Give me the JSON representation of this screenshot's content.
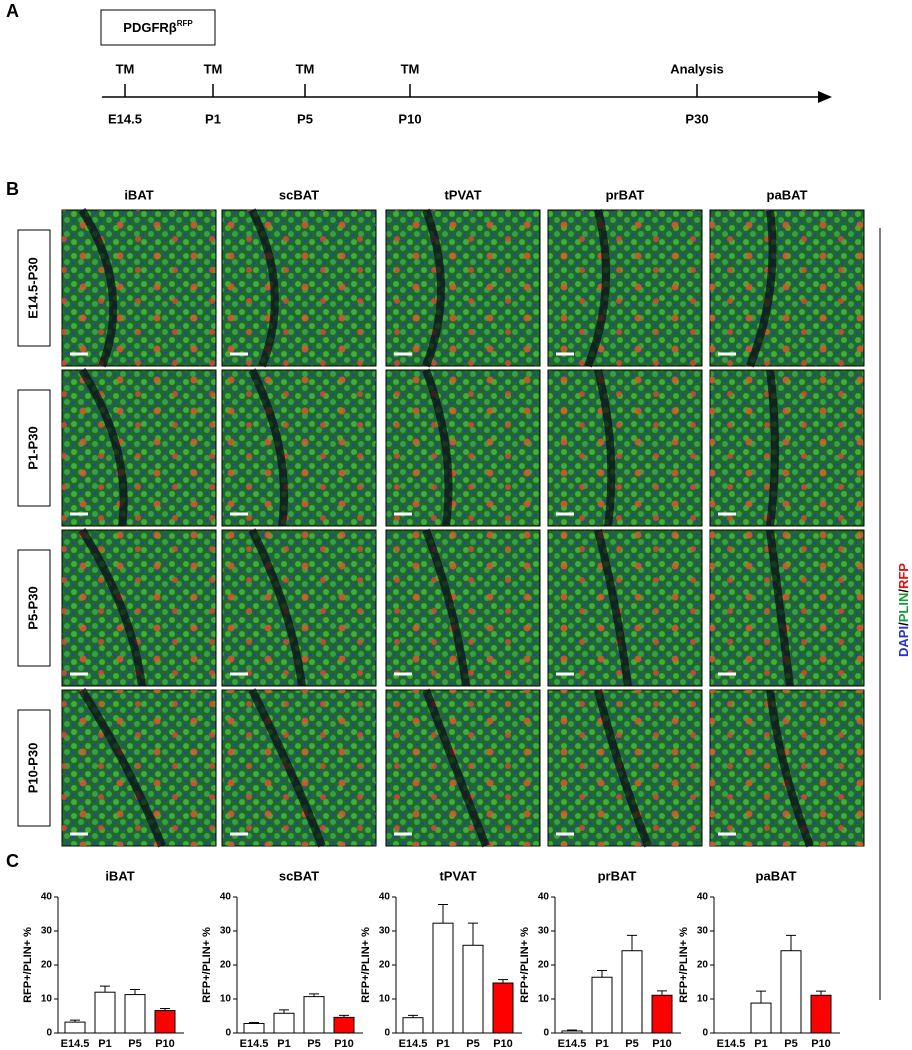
{
  "panel_a": {
    "label": "A",
    "mouse": "PDGFRβ",
    "mouse_sup": "RFP",
    "events": [
      {
        "top": "TM",
        "bottom": "E14.5"
      },
      {
        "top": "TM",
        "bottom": "P1"
      },
      {
        "top": "TM",
        "bottom": "P5"
      },
      {
        "top": "TM",
        "bottom": "P10"
      },
      {
        "top": "Analysis",
        "bottom": "P30"
      }
    ]
  },
  "panel_b": {
    "label": "B",
    "columns": [
      "iBAT",
      "scBAT",
      "tPVAT",
      "prBAT",
      "paBAT"
    ],
    "rows": [
      "E14.5-P30",
      "P1-P30",
      "P5-P30",
      "P10-P30"
    ],
    "stain": [
      {
        "text": "DAPI",
        "color": "#2233cc"
      },
      {
        "text": "/",
        "color": "#000000"
      },
      {
        "text": "PLIN",
        "color": "#1a9a3a"
      },
      {
        "text": "/",
        "color": "#000000"
      },
      {
        "text": "RFP",
        "color": "#e01010"
      }
    ]
  },
  "panel_c_label": "C",
  "chart_data": [
    {
      "type": "bar",
      "title": "iBAT",
      "ylabel": "RFP+/PLIN+ %",
      "categories": [
        "E14.5",
        "P1",
        "P5",
        "P10"
      ],
      "values": [
        3.2,
        12,
        11.3,
        6.6
      ],
      "errors": [
        0.6,
        1.8,
        1.5,
        0.6
      ],
      "colors": [
        "#ffffff",
        "#ffffff",
        "#ffffff",
        "#ff0000"
      ],
      "ylim": [
        0,
        40
      ],
      "yticks": [
        0,
        10,
        20,
        30,
        40
      ]
    },
    {
      "type": "bar",
      "title": "scBAT",
      "ylabel": "RFP+/PLIN+ %",
      "categories": [
        "E14.5",
        "P1",
        "P5",
        "P10"
      ],
      "values": [
        2.8,
        5.8,
        10.7,
        4.6
      ],
      "errors": [
        0.3,
        1,
        0.8,
        0.6
      ],
      "colors": [
        "#ffffff",
        "#ffffff",
        "#ffffff",
        "#ff0000"
      ],
      "ylim": [
        0,
        40
      ],
      "yticks": [
        0,
        10,
        20,
        30,
        40
      ]
    },
    {
      "type": "bar",
      "title": "tPVAT",
      "ylabel": "RFP+/PLIN+ %",
      "categories": [
        "E14.5",
        "P1",
        "P5",
        "P10"
      ],
      "values": [
        4.5,
        32.3,
        25.8,
        14.7
      ],
      "errors": [
        0.7,
        5.5,
        6.5,
        1
      ],
      "colors": [
        "#ffffff",
        "#ffffff",
        "#ffffff",
        "#ff0000"
      ],
      "ylim": [
        0,
        40
      ],
      "yticks": [
        0,
        10,
        20,
        30,
        40
      ]
    },
    {
      "type": "bar",
      "title": "prBAT",
      "ylabel": "RFP+/PLIN+ %",
      "categories": [
        "E14.5",
        "P1",
        "P5",
        "P10"
      ],
      "values": [
        0.6,
        16.4,
        24.2,
        11.1
      ],
      "errors": [
        0.3,
        2,
        4.5,
        1.3
      ],
      "colors": [
        "#ffffff",
        "#ffffff",
        "#ffffff",
        "#ff0000"
      ],
      "ylim": [
        0,
        40
      ],
      "yticks": [
        0,
        10,
        20,
        30,
        40
      ]
    },
    {
      "type": "bar",
      "title": "paBAT",
      "ylabel": "RFP+/PLIN+ %",
      "categories": [
        "E14.5",
        "P1",
        "P5",
        "P10"
      ],
      "values": [
        0,
        8.8,
        24.2,
        11.1
      ],
      "errors": [
        0,
        3.5,
        4.5,
        1.2
      ],
      "colors": [
        "#ffffff",
        "#ffffff",
        "#ffffff",
        "#ff0000"
      ],
      "ylim": [
        0,
        40
      ],
      "yticks": [
        0,
        10,
        20,
        30,
        40
      ]
    }
  ]
}
